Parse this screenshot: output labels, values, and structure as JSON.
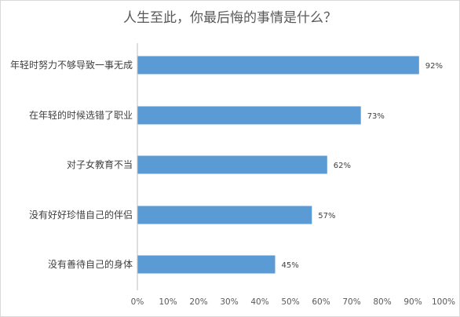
{
  "chart_data": {
    "type": "bar",
    "orientation": "horizontal",
    "title": "人生至此，你最后悔的事情是什么？",
    "categories": [
      "年轻时努力不够导致一事无成",
      "在年轻的时候选错了职业",
      "对子女教育不当",
      "没有好好珍惜自己的伴侣",
      "没有善待自己的身体"
    ],
    "values": [
      92,
      73,
      62,
      57,
      45
    ],
    "data_labels": [
      "92%",
      "73%",
      "62%",
      "57%",
      "45%"
    ],
    "x_ticks": [
      "0%",
      "10%",
      "20%",
      "30%",
      "40%",
      "50%",
      "60%",
      "70%",
      "80%",
      "90%",
      "100%"
    ],
    "xlim": [
      0,
      100
    ],
    "xlabel": "",
    "ylabel": "",
    "grid": false,
    "legend": "none",
    "bar_color": "#5b9bd5"
  }
}
